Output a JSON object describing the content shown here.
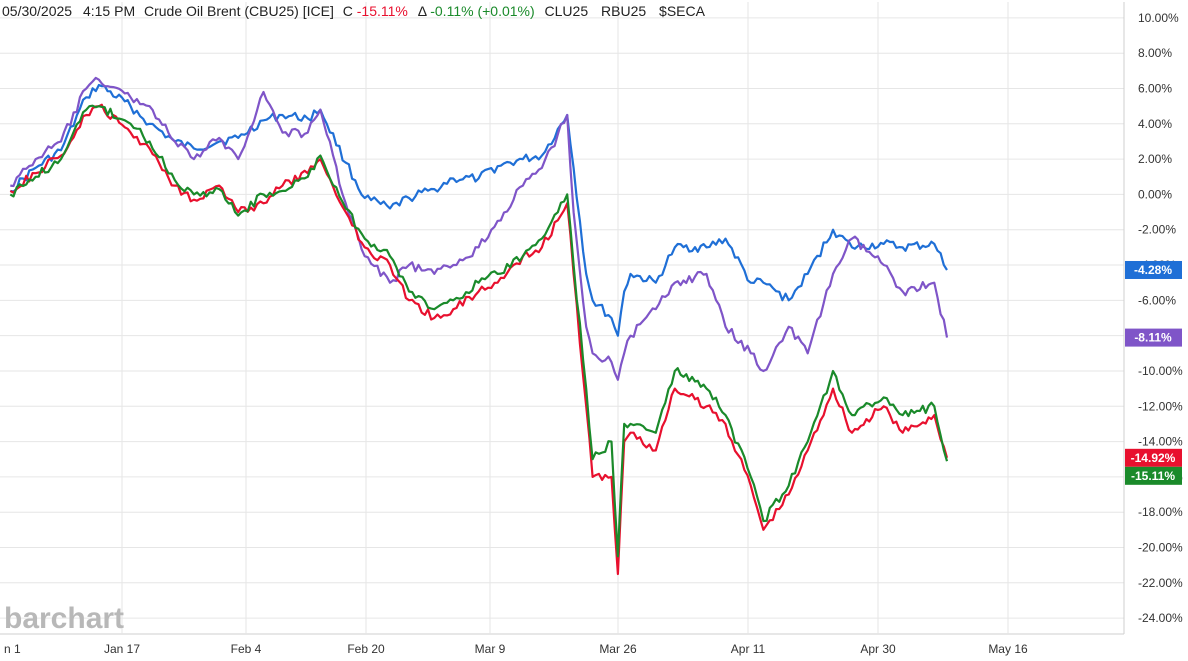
{
  "header": {
    "datetime": "05/30/2025",
    "time": "4:15 PM",
    "instrument": "Crude Oil Brent (CBU25) [ICE]",
    "change_prefix": "C",
    "change_value": "-15.11%",
    "delta_prefix": "Δ",
    "delta_value": "-0.11% (+0.01%)",
    "comparisons": [
      "CLU25",
      "RBU25",
      "$SECA"
    ]
  },
  "watermark": "barchart",
  "colors": {
    "brent": "#1a8a2a",
    "clu25": "#e8102e",
    "rbu25": "#7f55c8",
    "seca": "#1f6fd6",
    "positive": "#1a8a2a",
    "negative": "#e8102e"
  },
  "chart_data": {
    "type": "line",
    "title": "",
    "x_ticks": [
      "n 1",
      "Jan 17",
      "Feb 4",
      "Feb 20",
      "Mar 9",
      "Mar 26",
      "Apr 11",
      "Apr 30",
      "May 16"
    ],
    "y_ticks": [
      "10.00%",
      "8.00%",
      "6.00%",
      "4.00%",
      "2.00%",
      "0.00%",
      "-2.00%",
      "-4.00%",
      "-6.00%",
      "-8.00%",
      "-10.00%",
      "-12.00%",
      "-14.00%",
      "-16.00%",
      "-18.00%",
      "-20.00%",
      "-22.00%",
      "-24.00%"
    ],
    "ylim": [
      -24.9,
      10.9
    ],
    "ylabel": "",
    "grid": true,
    "series": [
      {
        "name": "$SECA",
        "color": "#1f6fd6",
        "last_label": "-4.28%",
        "x": [
          "2025-01-02",
          "2025-01-06",
          "2025-01-10",
          "2025-01-14",
          "2025-01-16",
          "2025-01-21",
          "2025-01-24",
          "2025-01-28",
          "2025-01-31",
          "2025-02-04",
          "2025-02-07",
          "2025-02-11",
          "2025-02-14",
          "2025-02-18",
          "2025-02-20",
          "2025-02-24",
          "2025-02-27",
          "2025-03-03",
          "2025-03-06",
          "2025-03-10",
          "2025-03-13",
          "2025-03-17",
          "2025-03-20",
          "2025-03-24",
          "2025-03-27",
          "2025-03-31",
          "2025-04-01",
          "2025-04-03",
          "2025-04-04",
          "2025-04-07",
          "2025-04-08",
          "2025-04-09",
          "2025-04-10",
          "2025-04-14",
          "2025-04-17",
          "2025-04-22",
          "2025-04-25",
          "2025-04-29",
          "2025-05-01",
          "2025-05-05",
          "2025-05-08",
          "2025-05-12",
          "2025-05-15",
          "2025-05-20",
          "2025-05-23",
          "2025-05-28",
          "2025-05-30"
        ],
        "y": [
          0.2,
          1.5,
          2.5,
          5.5,
          6.2,
          5.0,
          4.0,
          3.0,
          2.6,
          3.0,
          3.2,
          4.2,
          4.5,
          4.3,
          4.8,
          1.8,
          -0.2,
          -0.8,
          -0.2,
          0.3,
          0.9,
          0.9,
          1.6,
          2.0,
          2.2,
          4.5,
          1.5,
          -4.5,
          -6.0,
          -7.0,
          -8.0,
          -5.5,
          -4.5,
          -5.0,
          -3.0,
          -3.0,
          -2.5,
          -5.0,
          -5.0,
          -6.0,
          -4.5,
          -2.0,
          -3.0,
          -2.8,
          -3.0,
          -2.8,
          -4.28
        ]
      },
      {
        "name": "RBU25",
        "color": "#7f55c8",
        "last_label": "-8.11%",
        "x": [
          "2025-01-02",
          "2025-01-06",
          "2025-01-10",
          "2025-01-14",
          "2025-01-16",
          "2025-01-21",
          "2025-01-24",
          "2025-01-28",
          "2025-01-31",
          "2025-02-04",
          "2025-02-07",
          "2025-02-11",
          "2025-02-14",
          "2025-02-18",
          "2025-02-20",
          "2025-02-24",
          "2025-02-27",
          "2025-03-03",
          "2025-03-06",
          "2025-03-10",
          "2025-03-13",
          "2025-03-17",
          "2025-03-20",
          "2025-03-24",
          "2025-03-27",
          "2025-03-31",
          "2025-04-01",
          "2025-04-03",
          "2025-04-04",
          "2025-04-07",
          "2025-04-08",
          "2025-04-09",
          "2025-04-10",
          "2025-04-14",
          "2025-04-17",
          "2025-04-22",
          "2025-04-25",
          "2025-04-29",
          "2025-05-01",
          "2025-05-05",
          "2025-05-08",
          "2025-05-12",
          "2025-05-15",
          "2025-05-20",
          "2025-05-23",
          "2025-05-28",
          "2025-05-30"
        ],
        "y": [
          0.5,
          2.0,
          3.0,
          6.0,
          6.5,
          5.5,
          5.0,
          3.0,
          2.0,
          3.2,
          2.0,
          5.8,
          3.5,
          3.5,
          4.8,
          -0.5,
          -3.5,
          -5.0,
          -4.0,
          -4.5,
          -4.0,
          -3.0,
          -1.5,
          0.5,
          1.5,
          4.5,
          -1.0,
          -7.5,
          -9.0,
          -9.5,
          -10.5,
          -9.0,
          -8.0,
          -6.5,
          -5.0,
          -4.5,
          -7.5,
          -9.0,
          -10.0,
          -7.5,
          -9.0,
          -4.5,
          -2.5,
          -4.0,
          -5.5,
          -5.0,
          -8.11
        ]
      },
      {
        "name": "CLU25",
        "color": "#e8102e",
        "last_label": "-14.92%",
        "x": [
          "2025-01-02",
          "2025-01-06",
          "2025-01-10",
          "2025-01-14",
          "2025-01-16",
          "2025-01-21",
          "2025-01-24",
          "2025-01-28",
          "2025-01-31",
          "2025-02-04",
          "2025-02-07",
          "2025-02-11",
          "2025-02-14",
          "2025-02-18",
          "2025-02-20",
          "2025-02-24",
          "2025-02-27",
          "2025-03-03",
          "2025-03-06",
          "2025-03-10",
          "2025-03-13",
          "2025-03-17",
          "2025-03-20",
          "2025-03-24",
          "2025-03-27",
          "2025-03-31",
          "2025-04-01",
          "2025-04-03",
          "2025-04-04",
          "2025-04-07",
          "2025-04-08",
          "2025-04-09",
          "2025-04-10",
          "2025-04-14",
          "2025-04-17",
          "2025-04-22",
          "2025-04-25",
          "2025-04-29",
          "2025-05-01",
          "2025-05-05",
          "2025-05-08",
          "2025-05-12",
          "2025-05-15",
          "2025-05-20",
          "2025-05-23",
          "2025-05-28",
          "2025-05-30"
        ],
        "y": [
          0.2,
          1.2,
          2.2,
          4.5,
          5.0,
          3.5,
          2.6,
          0.5,
          -0.3,
          0.5,
          -1.0,
          -0.5,
          0.5,
          1.2,
          2.0,
          -1.0,
          -3.0,
          -4.0,
          -6.0,
          -7.0,
          -6.5,
          -5.5,
          -5.0,
          -3.5,
          -3.0,
          -0.5,
          -4.5,
          -12.0,
          -16.0,
          -16.0,
          -21.5,
          -14.0,
          -13.5,
          -14.5,
          -11.0,
          -12.0,
          -13.0,
          -16.5,
          -19.0,
          -17.0,
          -14.5,
          -11.0,
          -13.5,
          -12.0,
          -13.5,
          -12.5,
          -14.92
        ]
      },
      {
        "name": "Crude Oil Brent (CBU25)",
        "color": "#1a8a2a",
        "last_label": "-15.11%",
        "x": [
          "2025-01-02",
          "2025-01-06",
          "2025-01-10",
          "2025-01-14",
          "2025-01-16",
          "2025-01-21",
          "2025-01-24",
          "2025-01-28",
          "2025-01-31",
          "2025-02-04",
          "2025-02-07",
          "2025-02-11",
          "2025-02-14",
          "2025-02-18",
          "2025-02-20",
          "2025-02-24",
          "2025-02-27",
          "2025-03-03",
          "2025-03-06",
          "2025-03-10",
          "2025-03-13",
          "2025-03-17",
          "2025-03-20",
          "2025-03-24",
          "2025-03-27",
          "2025-03-31",
          "2025-04-01",
          "2025-04-03",
          "2025-04-04",
          "2025-04-07",
          "2025-04-08",
          "2025-04-09",
          "2025-04-10",
          "2025-04-14",
          "2025-04-17",
          "2025-04-22",
          "2025-04-25",
          "2025-04-29",
          "2025-05-01",
          "2025-05-05",
          "2025-05-08",
          "2025-05-12",
          "2025-05-15",
          "2025-05-20",
          "2025-05-23",
          "2025-05-28",
          "2025-05-30"
        ],
        "y": [
          0.0,
          1.0,
          2.0,
          4.8,
          5.0,
          4.0,
          3.0,
          0.8,
          0.0,
          0.3,
          -1.2,
          0.0,
          0.2,
          1.0,
          2.2,
          -0.8,
          -2.5,
          -3.5,
          -5.5,
          -6.5,
          -6.0,
          -5.0,
          -4.5,
          -3.5,
          -2.5,
          0.0,
          -4.0,
          -11.0,
          -15.0,
          -14.0,
          -20.5,
          -13.0,
          -13.0,
          -13.5,
          -10.0,
          -11.0,
          -12.5,
          -16.0,
          -18.5,
          -16.5,
          -14.0,
          -10.0,
          -12.5,
          -11.5,
          -12.5,
          -12.0,
          -15.11
        ]
      }
    ]
  }
}
